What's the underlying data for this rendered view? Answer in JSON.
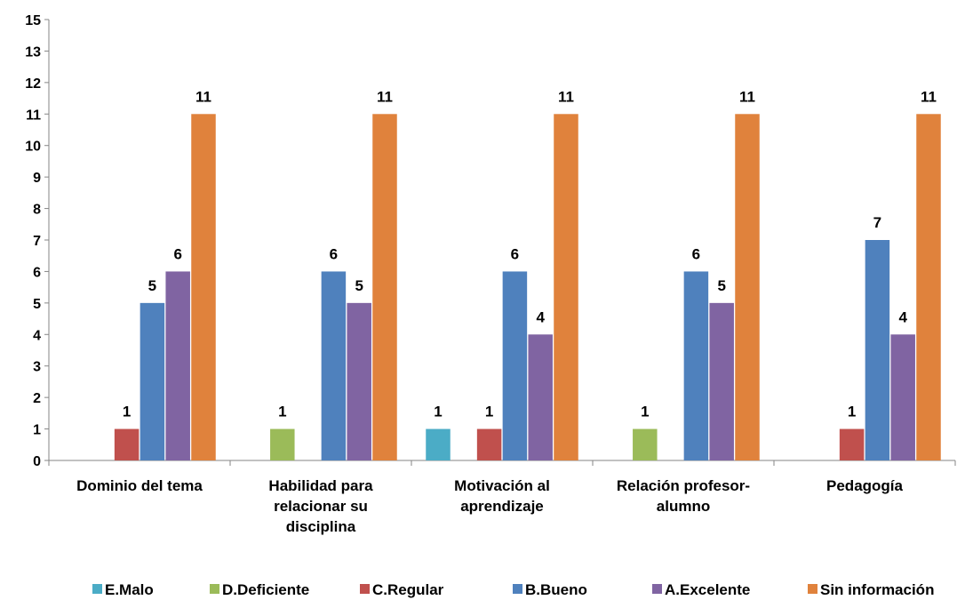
{
  "chart_data": {
    "type": "bar",
    "categories": [
      [
        "Dominio del tema"
      ],
      [
        "Habilidad para",
        "relacionar su",
        "disciplina"
      ],
      [
        "Motivación al",
        "aprendizaje"
      ],
      [
        "Relación profesor-",
        "alumno"
      ],
      [
        "Pedagogía"
      ]
    ],
    "y_tick_labels": [
      "0",
      "1",
      "2",
      "3",
      "4",
      "5",
      "6",
      "7",
      "8",
      "9",
      "10",
      "11",
      "12",
      "13",
      "15"
    ],
    "ylim": [
      0,
      14
    ],
    "grid": false,
    "legend_position": "bottom",
    "series": [
      {
        "name": "E.Malo",
        "color": "#4bacc6",
        "values": [
          0,
          0,
          1,
          0,
          0
        ],
        "labels": [
          "",
          "",
          "1",
          "",
          ""
        ]
      },
      {
        "name": "D.Deficiente",
        "color": "#9bbb59",
        "values": [
          0,
          1,
          0,
          1,
          0
        ],
        "labels": [
          "",
          "1",
          "",
          "1",
          ""
        ]
      },
      {
        "name": "C.Regular",
        "color": "#c0504d",
        "values": [
          1,
          0,
          1,
          0,
          1
        ],
        "labels": [
          "1",
          "",
          "1",
          "",
          "1"
        ]
      },
      {
        "name": "B.Bueno",
        "color": "#4f81bd",
        "values": [
          5,
          6,
          6,
          6,
          7
        ],
        "labels": [
          "5",
          "6",
          "6",
          "6",
          "7"
        ]
      },
      {
        "name": "A.Excelente",
        "color": "#8064a2",
        "values": [
          6,
          5,
          4,
          5,
          4
        ],
        "labels": [
          "6",
          "5",
          "4",
          "5",
          "4"
        ]
      },
      {
        "name": "Sin información",
        "color": "#e0823c",
        "values": [
          11,
          11,
          11,
          11,
          11
        ],
        "labels": [
          "11",
          "11",
          "11",
          "11",
          "11"
        ]
      }
    ]
  }
}
